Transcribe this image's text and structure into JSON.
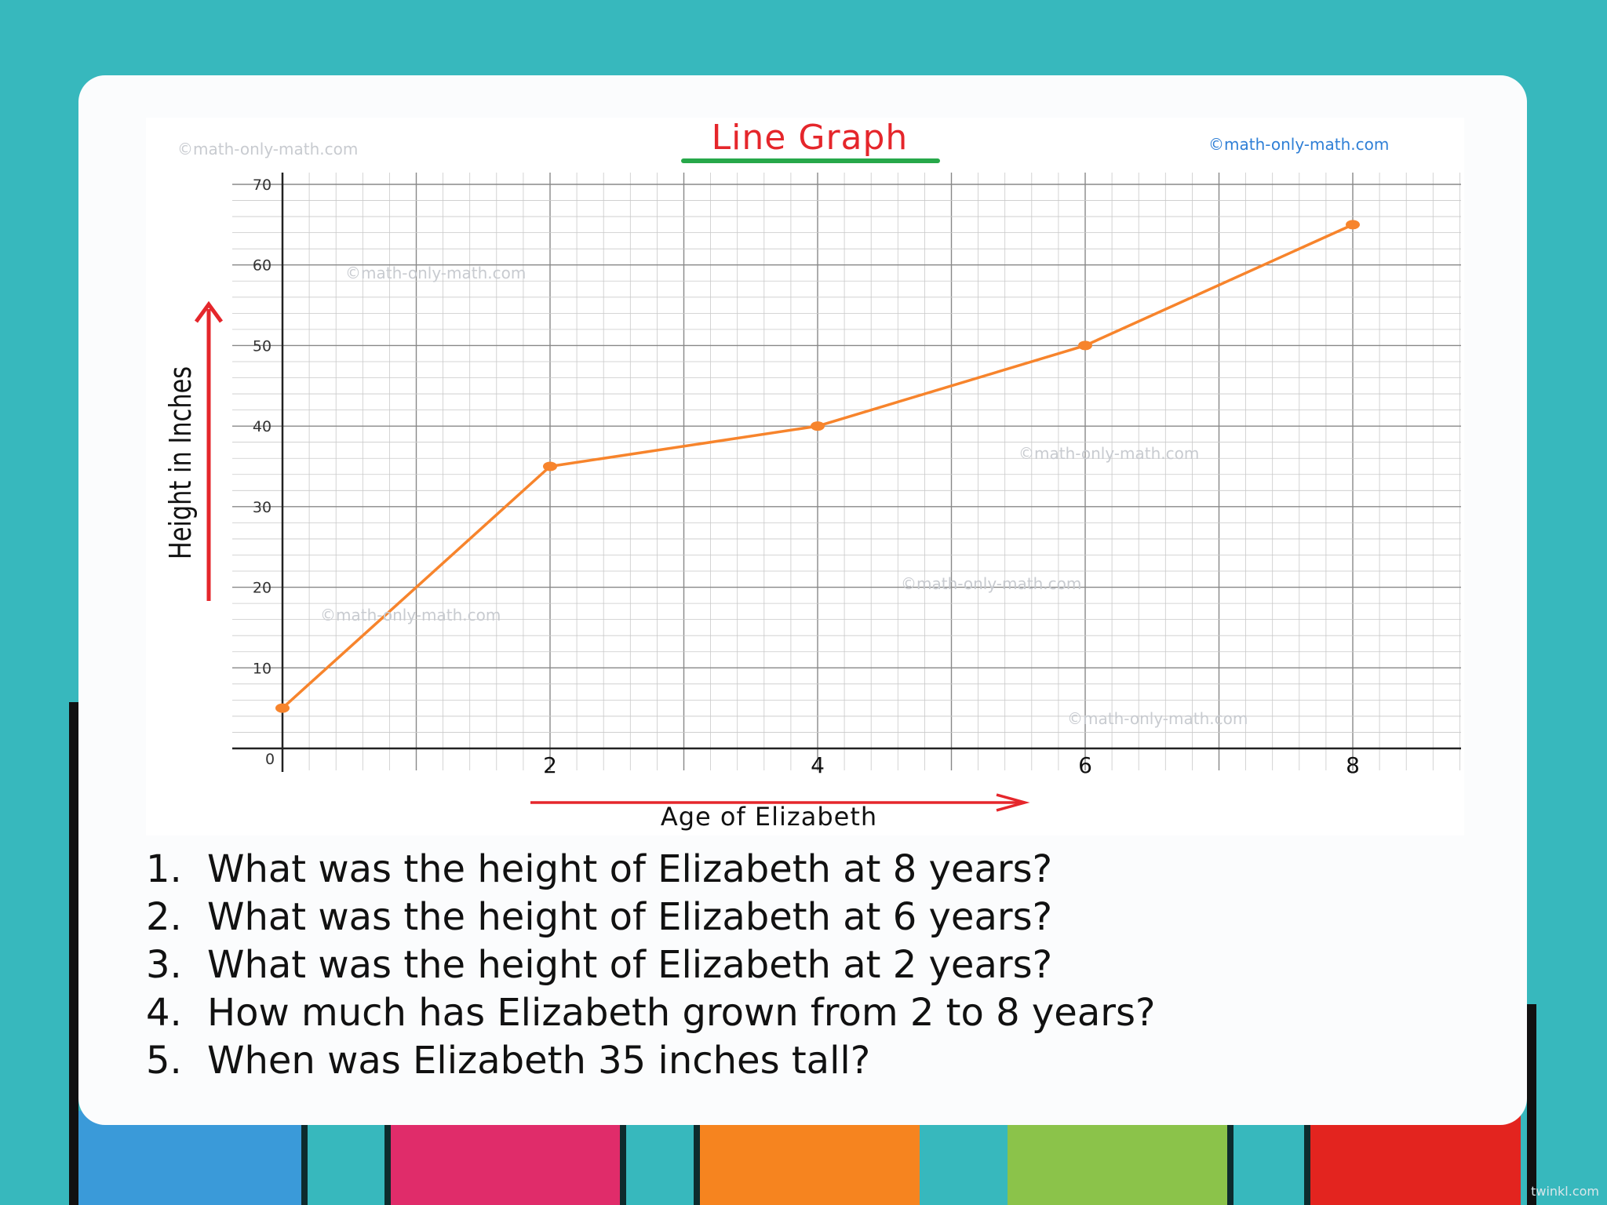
{
  "chart_data": {
    "type": "line",
    "title": "Line Graph",
    "xlabel": "Age of Elizabeth",
    "ylabel": "Height in Inches",
    "x": [
      0,
      2,
      4,
      6,
      8
    ],
    "series": [
      {
        "values": [
          5,
          35,
          40,
          50,
          65
        ]
      }
    ],
    "xticks": [
      0,
      2,
      4,
      6,
      8
    ],
    "yticks": [
      0,
      10,
      20,
      30,
      40,
      50,
      60,
      70
    ],
    "xlim": [
      0,
      8.8
    ],
    "ylim": [
      0,
      70
    ],
    "grid": true,
    "colors": {
      "line": "#f7842c",
      "arrows": "#e5262b",
      "title": "#e5262b",
      "underline": "#27a84a"
    }
  },
  "watermarks": [
    "©math-only-math.com",
    "©math-only-math.com",
    "©math-only-math.com",
    "©math-only-math.com",
    "©math-only-math.com",
    "©math-only-math.com",
    "©math-only-math.com"
  ],
  "questions": [
    {
      "num": "1.",
      "text": "What was the height of Elizabeth at 8 years?"
    },
    {
      "num": "2.",
      "text": "What was the height of Elizabeth at 6 years?"
    },
    {
      "num": "3.",
      "text": "What was the height of Elizabeth at 2 years?"
    },
    {
      "num": "4.",
      "text": "How much has Elizabeth grown from 2 to 8 years?"
    },
    {
      "num": "5.",
      "text": "When was Elizabeth 35 inches tall?"
    }
  ],
  "background": {
    "main_color": "#37b8bd",
    "bar_colors": [
      "#3a9ad9",
      "#e02c6a",
      "#f6841f",
      "#8bc34a",
      "#e3241f"
    ]
  },
  "site_mark": "twinkl.com"
}
